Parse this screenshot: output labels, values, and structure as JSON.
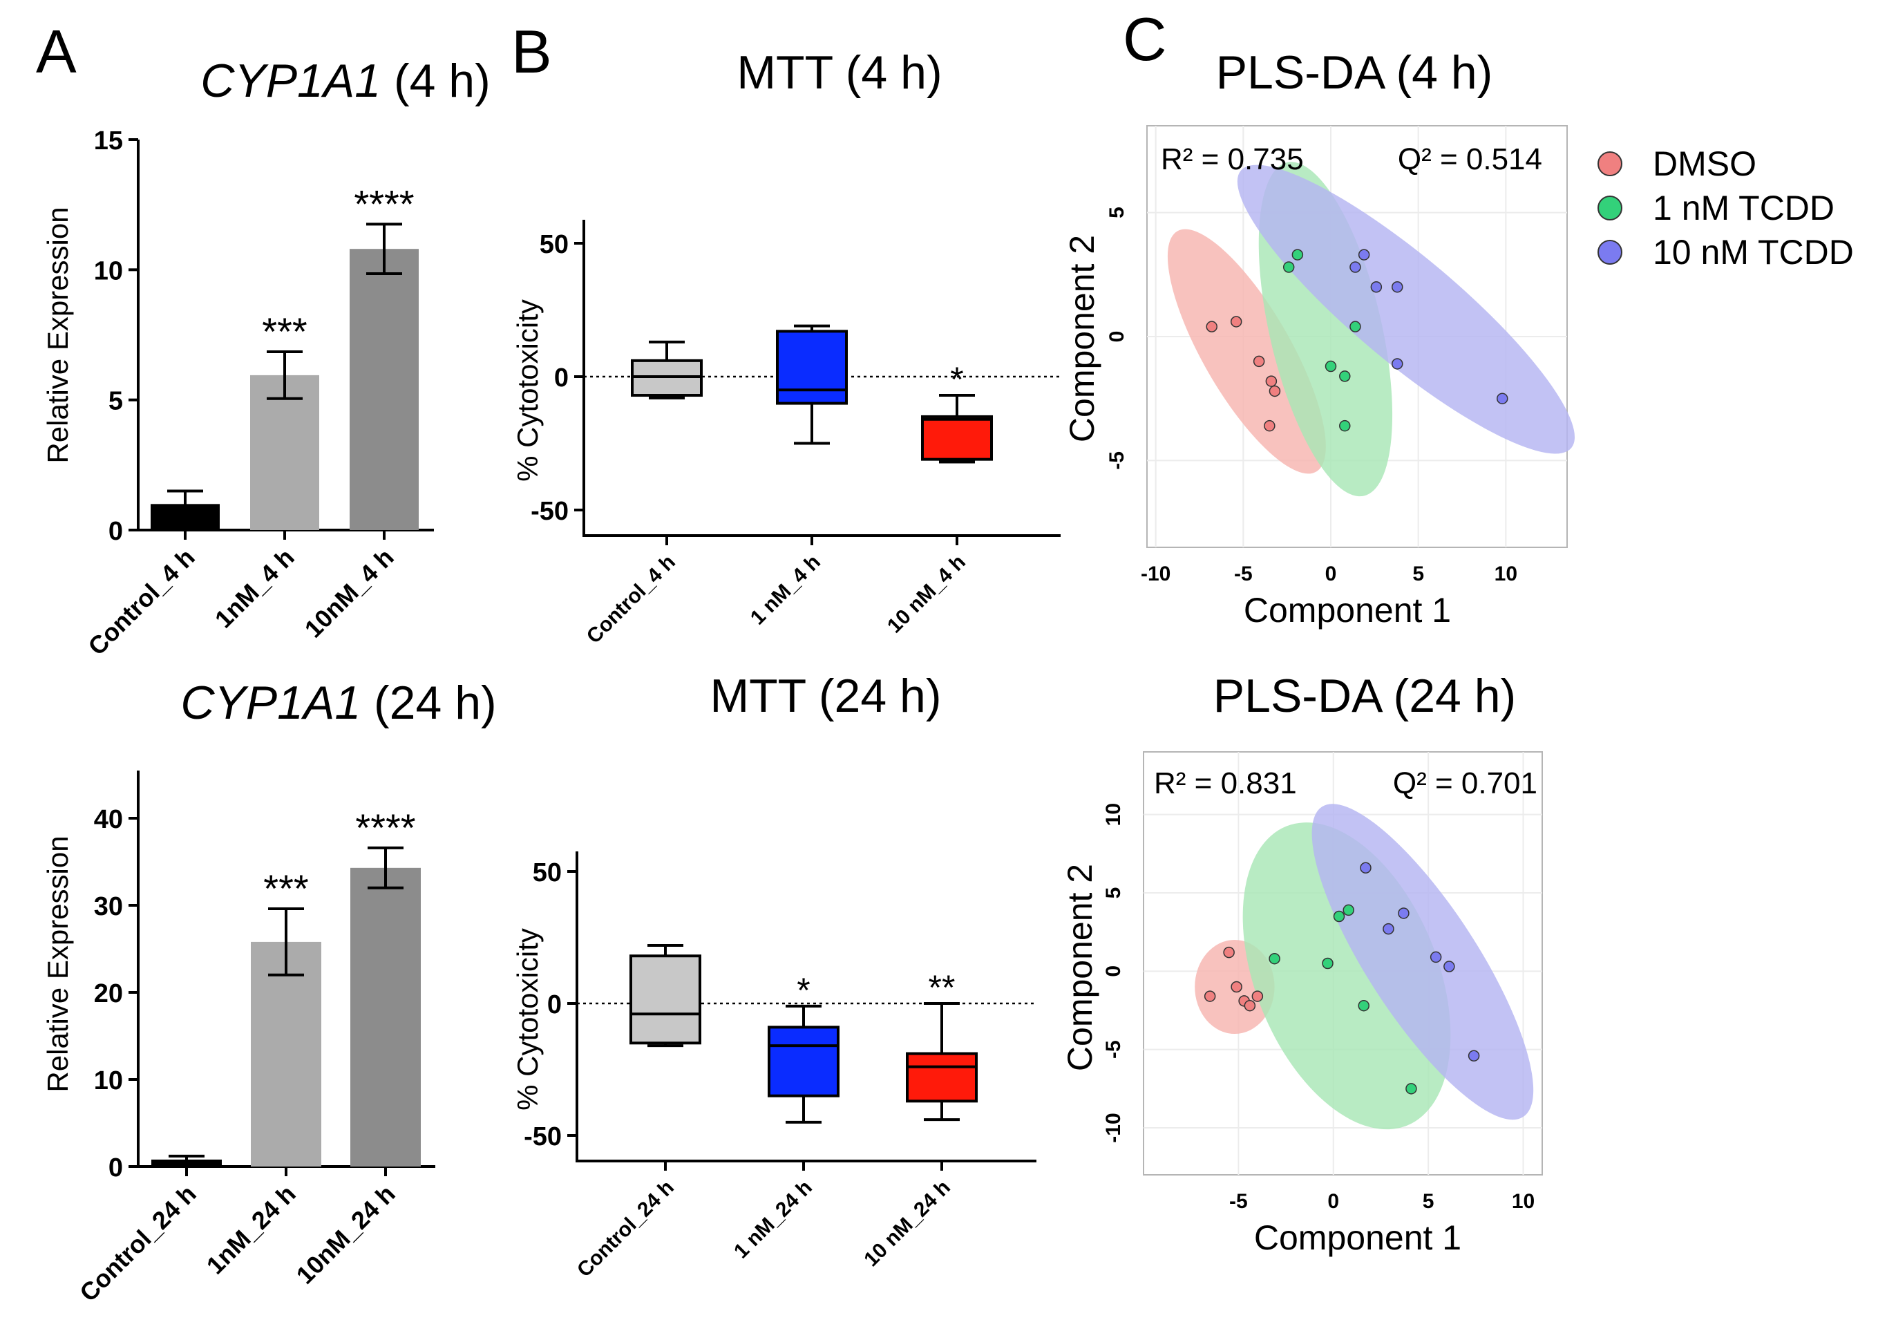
{
  "colors": {
    "control_bar": "#000000",
    "bar_1nM": "#ababab",
    "bar_10nM": "#8c8c8c",
    "box_control": "#c8c8c8",
    "box_1nM": "#0a2cff",
    "box_10nM": "#ff1a0a",
    "dmso": "#f08080",
    "tcdd1": "#33d17a",
    "tcdd10": "#7b7bf0",
    "ellipse_dmso": "#f7b5b0",
    "ellipse_tcdd1": "#a8e6b6",
    "ellipse_tcdd10": "#b4b4f2"
  },
  "panels": {
    "A": "A",
    "B": "B",
    "C": "C"
  },
  "chart_data": [
    {
      "id": "A4",
      "type": "bar",
      "title": {
        "gene": "CYP1A1",
        "suffix": " (4 h)"
      },
      "ylabel": "Relative Expression",
      "xlabel": "",
      "ylim": [
        0,
        15
      ],
      "yticks": [
        0,
        5,
        10,
        15
      ],
      "categories": [
        "Control_4 h",
        "1nM_4 h",
        "10nM_4 h"
      ],
      "values": [
        1.0,
        5.95,
        10.8
      ],
      "errors": [
        0.5,
        0.9,
        0.95
      ],
      "significance": [
        "",
        "***",
        "****"
      ],
      "colors": [
        "#000000",
        "#ababab",
        "#8c8c8c"
      ]
    },
    {
      "id": "A24",
      "type": "bar",
      "title": {
        "gene": "CYP1A1",
        "suffix": " (24 h)"
      },
      "ylabel": "Relative Expression",
      "xlabel": "",
      "ylim": [
        0,
        45
      ],
      "yticks": [
        0,
        10,
        20,
        30,
        40
      ],
      "categories": [
        "Control_24 h",
        "1nM_24 h",
        "10nM_24 h"
      ],
      "values": [
        0.8,
        25.8,
        34.3
      ],
      "errors": [
        0.4,
        3.8,
        2.3
      ],
      "significance": [
        "",
        "***",
        "****"
      ],
      "colors": [
        "#000000",
        "#ababab",
        "#8c8c8c"
      ]
    },
    {
      "id": "B4",
      "type": "box",
      "title": "MTT (4 h)",
      "ylabel": "% Cytotoxicity",
      "xlabel": "",
      "ylim": [
        -60,
        60
      ],
      "yticks": [
        -50,
        0,
        50
      ],
      "categories": [
        "Control_4 h",
        "1 nM_4 h",
        "10 nM_4 h"
      ],
      "boxes": [
        {
          "min": -8,
          "q1": -7,
          "median": 0,
          "q3": 6,
          "max": 13
        },
        {
          "min": -25,
          "q1": -10,
          "median": -5,
          "q3": 17,
          "max": 19
        },
        {
          "min": -32,
          "q1": -31,
          "median": -16,
          "q3": -15,
          "max": -7
        }
      ],
      "significance": [
        "",
        "",
        "*"
      ],
      "colors": [
        "#c8c8c8",
        "#0a2cff",
        "#ff1a0a"
      ]
    },
    {
      "id": "B24",
      "type": "box",
      "title": "MTT (24 h)",
      "ylabel": "% Cytotoxicity",
      "xlabel": "",
      "ylim": [
        -60,
        60
      ],
      "yticks": [
        -50,
        0,
        50
      ],
      "categories": [
        "Control_24 h",
        "1 nM_24 h",
        "10 nM_24 h"
      ],
      "boxes": [
        {
          "min": -16,
          "q1": -15,
          "median": -4,
          "q3": 18,
          "max": 22
        },
        {
          "min": -45,
          "q1": -35,
          "median": -16,
          "q3": -9,
          "max": -1
        },
        {
          "min": -44,
          "q1": -37,
          "median": -24,
          "q3": -19,
          "max": 0
        }
      ],
      "significance": [
        "",
        "*",
        "**"
      ],
      "colors": [
        "#c8c8c8",
        "#0a2cff",
        "#ff1a0a"
      ]
    },
    {
      "id": "C4",
      "type": "scatter",
      "title": "PLS-DA (4 h)",
      "xlabel": "Component 1",
      "ylabel": "Component 2",
      "xlim": [
        -10.5,
        13.5
      ],
      "ylim": [
        -8.5,
        8.5
      ],
      "xticks": [
        -10,
        -5,
        0,
        5,
        10
      ],
      "yticks": [
        -5,
        0,
        5
      ],
      "annotations": {
        "r2_label": "R² = 0.735",
        "q2_label": "Q² = 0.514"
      },
      "series": [
        {
          "name": "DMSO",
          "color": "#f08080",
          "points": [
            [
              -6.8,
              0.4
            ],
            [
              -5.4,
              0.6
            ],
            [
              -4.1,
              -1.0
            ],
            [
              -3.4,
              -1.8
            ],
            [
              -3.2,
              -2.2
            ],
            [
              -3.5,
              -3.6
            ]
          ],
          "ellipse": {
            "cx": -4.8,
            "cy": -0.6,
            "rx": 2.5,
            "ry": 5.6,
            "angle_deg": 30
          }
        },
        {
          "name": "1 nM TCDD",
          "color": "#33d17a",
          "points": [
            [
              -2.4,
              2.8
            ],
            [
              -1.9,
              3.3
            ],
            [
              1.4,
              0.4
            ],
            [
              0.0,
              -1.2
            ],
            [
              0.8,
              -1.6
            ],
            [
              0.8,
              -3.6
            ]
          ],
          "ellipse": {
            "cx": -0.3,
            "cy": 0.3,
            "rx": 3.2,
            "ry": 6.9,
            "angle_deg": 13
          }
        },
        {
          "name": "10 nM TCDD",
          "color": "#7b7bf0",
          "points": [
            [
              1.4,
              2.8
            ],
            [
              1.9,
              3.3
            ],
            [
              2.6,
              2.0
            ],
            [
              3.8,
              2.0
            ],
            [
              3.8,
              -1.1
            ],
            [
              9.8,
              -2.5
            ]
          ],
          "ellipse": {
            "cx": 4.3,
            "cy": 1.1,
            "rx": 3.0,
            "ry": 8.7,
            "angle_deg": 50
          }
        }
      ]
    },
    {
      "id": "C24",
      "type": "scatter",
      "title": "PLS-DA (24 h)",
      "xlabel": "Component 1",
      "ylabel": "Component 2",
      "xlim": [
        -10,
        11
      ],
      "ylim": [
        -13,
        14
      ],
      "xticks": [
        -5,
        0,
        5,
        10
      ],
      "yticks": [
        -10,
        -5,
        0,
        5,
        10
      ],
      "annotations": {
        "r2_label": "R² = 0.831",
        "q2_label": "Q² = 0.701"
      },
      "series": [
        {
          "name": "DMSO",
          "color": "#f08080",
          "points": [
            [
              -6.5,
              -1.6
            ],
            [
              -5.5,
              1.2
            ],
            [
              -5.1,
              -1.0
            ],
            [
              -4.7,
              -1.9
            ],
            [
              -4.4,
              -2.2
            ],
            [
              -4.0,
              -1.6
            ]
          ],
          "ellipse": {
            "cx": -5.2,
            "cy": -1.0,
            "rx": 2.1,
            "ry": 3.0,
            "angle_deg": 0
          }
        },
        {
          "name": "1 nM TCDD",
          "color": "#33d17a",
          "points": [
            [
              -3.1,
              0.8
            ],
            [
              -0.3,
              0.5
            ],
            [
              0.3,
              3.5
            ],
            [
              0.8,
              3.9
            ],
            [
              1.6,
              -2.2
            ],
            [
              4.1,
              -7.5
            ]
          ],
          "ellipse": {
            "cx": 0.7,
            "cy": -0.3,
            "rx": 4.8,
            "ry": 10.3,
            "angle_deg": 22
          }
        },
        {
          "name": "10 nM TCDD",
          "color": "#7b7bf0",
          "points": [
            [
              1.7,
              6.6
            ],
            [
              2.9,
              2.7
            ],
            [
              3.7,
              3.7
            ],
            [
              5.4,
              0.9
            ],
            [
              6.1,
              0.3
            ],
            [
              7.4,
              -5.4
            ]
          ],
          "ellipse": {
            "cx": 4.7,
            "cy": 0.6,
            "rx": 2.9,
            "ry": 11.8,
            "angle_deg": 33
          }
        }
      ]
    }
  ],
  "legend": [
    {
      "label": "DMSO",
      "color": "#f08080"
    },
    {
      "label": "1 nM TCDD",
      "color": "#33d17a"
    },
    {
      "label": "10 nM TCDD",
      "color": "#7b7bf0"
    }
  ]
}
